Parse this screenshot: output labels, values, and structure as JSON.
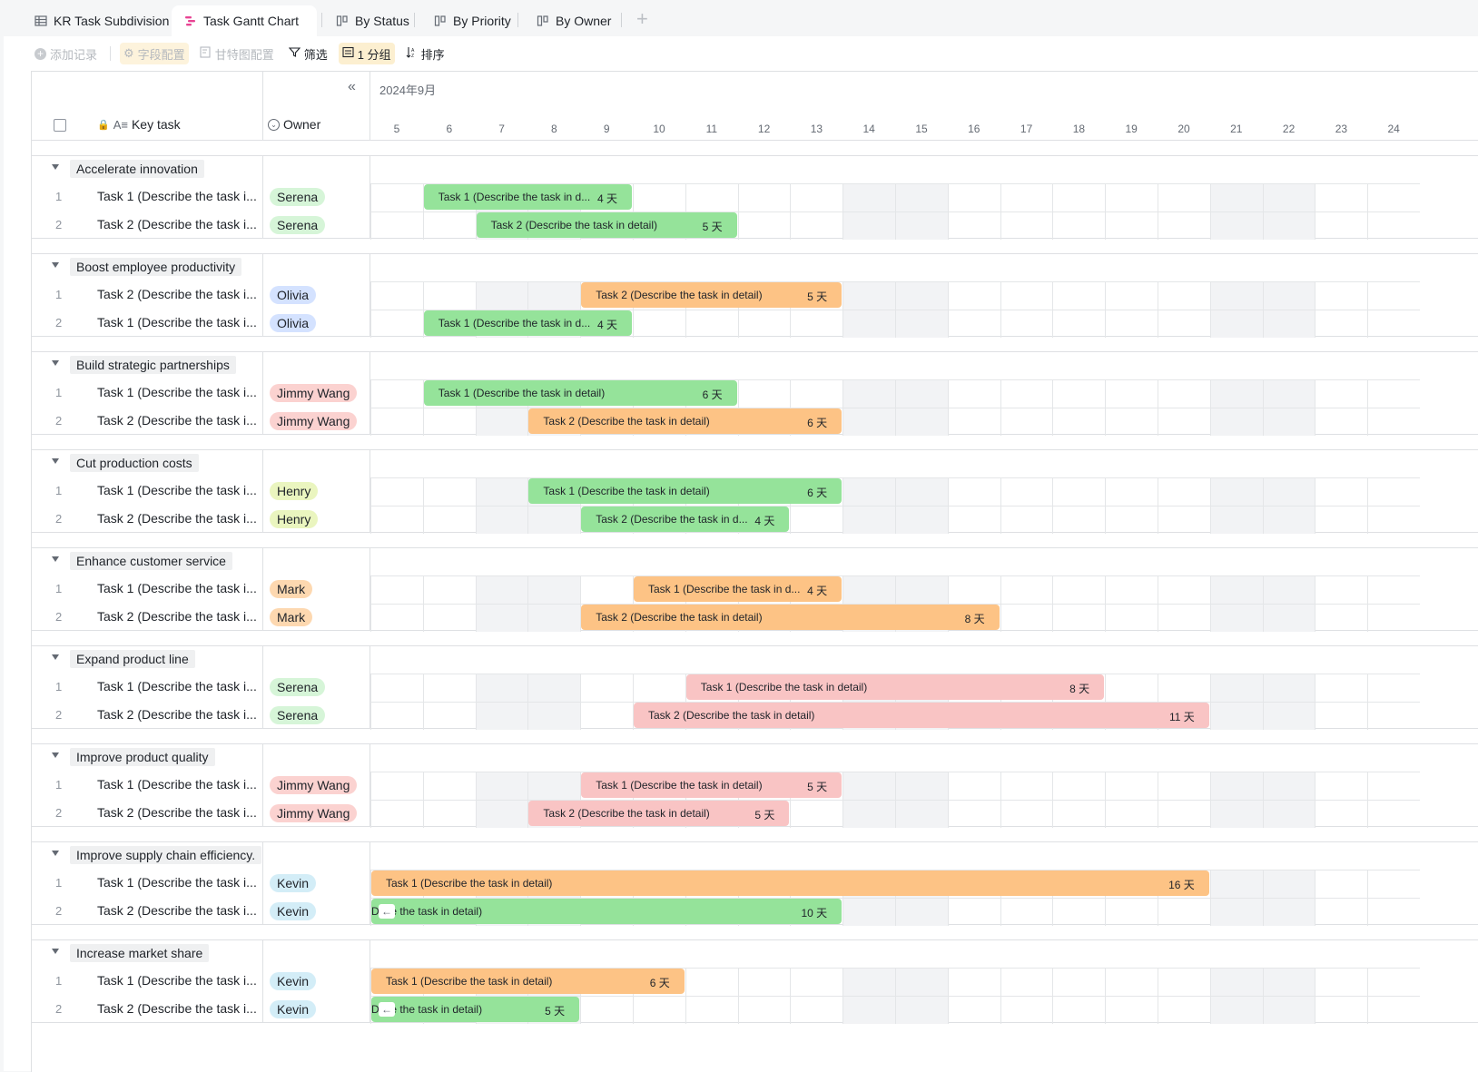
{
  "tabs": [
    {
      "label": "KR Task Subdivision",
      "icon": "table-icon",
      "active": false
    },
    {
      "label": "Task Gantt Chart",
      "icon": "gantt-icon",
      "active": true
    },
    {
      "label": "By Status",
      "icon": "kanban-icon",
      "active": false
    },
    {
      "label": "By Priority",
      "icon": "kanban-icon",
      "active": false
    },
    {
      "label": "By Owner",
      "icon": "kanban-icon",
      "active": false
    }
  ],
  "toolbar": {
    "add_record": "添加记录",
    "field_config": "字段配置",
    "gantt_config": "甘特图配置",
    "filter": "筛选",
    "group": "1 分组",
    "sort": "排序"
  },
  "header": {
    "key_task": "Key task",
    "owner": "Owner",
    "month": "2024年9月",
    "days": [
      "5",
      "6",
      "7",
      "8",
      "9",
      "10",
      "11",
      "12",
      "13",
      "14",
      "15",
      "16",
      "17",
      "18",
      "19",
      "20",
      "21",
      "22",
      "23",
      "24"
    ],
    "weekend_day_indexes": [
      2,
      3,
      9,
      10,
      16,
      17
    ]
  },
  "colors": {
    "green": "#95e39a",
    "orange": "#fdc385",
    "pink": "#f9c4c4",
    "weekend": "#f2f3f5"
  },
  "groups": [
    {
      "name": "Accelerate innovation",
      "rows": [
        {
          "num": "1",
          "task": "Task 1 (Describe the task i...",
          "owner": "Serena",
          "owner_color": "#d6f5d8",
          "bar": {
            "label": "Task 1 (Describe the task in d...",
            "dur": "4 天",
            "start": 6,
            "end": 9,
            "color": "green"
          }
        },
        {
          "num": "2",
          "task": "Task 2 (Describe the task i...",
          "owner": "Serena",
          "owner_color": "#d6f5d8",
          "bar": {
            "label": "Task 2 (Describe the task in detail)",
            "dur": "5 天",
            "start": 7,
            "end": 11,
            "color": "green"
          }
        }
      ]
    },
    {
      "name": "Boost employee productivity",
      "rows": [
        {
          "num": "1",
          "task": "Task 2 (Describe the task i...",
          "owner": "Olivia",
          "owner_color": "#d4e2ff",
          "bar": {
            "label": "Task 2 (Describe the task in detail)",
            "dur": "5 天",
            "start": 9,
            "end": 13,
            "color": "orange"
          }
        },
        {
          "num": "2",
          "task": "Task 1 (Describe the task i...",
          "owner": "Olivia",
          "owner_color": "#d4e2ff",
          "bar": {
            "label": "Task 1 (Describe the task in d...",
            "dur": "4 天",
            "start": 6,
            "end": 9,
            "color": "green"
          }
        }
      ]
    },
    {
      "name": "Build strategic partnerships",
      "rows": [
        {
          "num": "1",
          "task": "Task 1 (Describe the task i...",
          "owner": "Jimmy Wang",
          "owner_color": "#fbd2d0",
          "bar": {
            "label": "Task 1 (Describe the task in detail)",
            "dur": "6 天",
            "start": 6,
            "end": 11,
            "color": "green"
          }
        },
        {
          "num": "2",
          "task": "Task 2 (Describe the task i...",
          "owner": "Jimmy Wang",
          "owner_color": "#fbd2d0",
          "bar": {
            "label": "Task 2 (Describe the task in detail)",
            "dur": "6 天",
            "start": 8,
            "end": 13,
            "color": "orange"
          }
        }
      ]
    },
    {
      "name": "Cut production costs",
      "rows": [
        {
          "num": "1",
          "task": "Task 1 (Describe the task i...",
          "owner": "Henry",
          "owner_color": "#eaf5bf",
          "bar": {
            "label": "Task 1 (Describe the task in detail)",
            "dur": "6 天",
            "start": 8,
            "end": 13,
            "color": "green"
          }
        },
        {
          "num": "2",
          "task": "Task 2 (Describe the task i...",
          "owner": "Henry",
          "owner_color": "#eaf5bf",
          "bar": {
            "label": "Task 2 (Describe the task in d...",
            "dur": "4 天",
            "start": 9,
            "end": 12,
            "color": "green"
          }
        }
      ]
    },
    {
      "name": "Enhance customer service",
      "rows": [
        {
          "num": "1",
          "task": "Task 1 (Describe the task i...",
          "owner": "Mark",
          "owner_color": "#fdd8b0",
          "bar": {
            "label": "Task 1 (Describe the task in d...",
            "dur": "4 天",
            "start": 10,
            "end": 13,
            "color": "orange"
          }
        },
        {
          "num": "2",
          "task": "Task 2 (Describe the task i...",
          "owner": "Mark",
          "owner_color": "#fdd8b0",
          "bar": {
            "label": "Task 2 (Describe the task in detail)",
            "dur": "8 天",
            "start": 9,
            "end": 16,
            "color": "orange"
          }
        }
      ]
    },
    {
      "name": "Expand product line",
      "rows": [
        {
          "num": "1",
          "task": "Task 1 (Describe the task i...",
          "owner": "Serena",
          "owner_color": "#d6f5d8",
          "bar": {
            "label": "Task 1 (Describe the task in detail)",
            "dur": "8 天",
            "start": 11,
            "end": 18,
            "color": "pink"
          }
        },
        {
          "num": "2",
          "task": "Task 2 (Describe the task i...",
          "owner": "Serena",
          "owner_color": "#d6f5d8",
          "bar": {
            "label": "Task 2 (Describe the task in detail)",
            "dur": "11 天",
            "start": 10,
            "end": 20,
            "color": "pink"
          }
        }
      ]
    },
    {
      "name": "Improve product quality",
      "rows": [
        {
          "num": "1",
          "task": "Task 1 (Describe the task i...",
          "owner": "Jimmy Wang",
          "owner_color": "#fbd2d0",
          "bar": {
            "label": "Task 1 (Describe the task in detail)",
            "dur": "5 天",
            "start": 9,
            "end": 13,
            "color": "pink"
          }
        },
        {
          "num": "2",
          "task": "Task 2 (Describe the task i...",
          "owner": "Jimmy Wang",
          "owner_color": "#fbd2d0",
          "bar": {
            "label": "Task 2 (Describe the task in detail)",
            "dur": "5 天",
            "start": 8,
            "end": 12,
            "color": "pink"
          }
        }
      ]
    },
    {
      "name": "Improve supply chain efficiency.",
      "rows": [
        {
          "num": "1",
          "task": "Task 1 (Describe the task i...",
          "owner": "Kevin",
          "owner_color": "#d3edf7",
          "bar": {
            "label": "Task 1 (Describe the task in detail)",
            "dur": "16 天",
            "start": 5,
            "end": 20,
            "color": "orange"
          }
        },
        {
          "num": "2",
          "task": "Task 2 (Describe the task i...",
          "owner": "Kevin",
          "owner_color": "#d3edf7",
          "bar": {
            "label": "D  ibe the task in detail)",
            "dur": "10 天",
            "start": 5,
            "end": 13,
            "color": "green",
            "clipped": true
          }
        }
      ]
    },
    {
      "name": "Increase market share",
      "rows": [
        {
          "num": "1",
          "task": "Task 1 (Describe the task i...",
          "owner": "Kevin",
          "owner_color": "#d3edf7",
          "bar": {
            "label": "Task 1 (Describe the task in detail)",
            "dur": "6 天",
            "start": 5,
            "end": 10,
            "color": "orange"
          }
        },
        {
          "num": "2",
          "task": "Task 2 (Describe the task i...",
          "owner": "Kevin",
          "owner_color": "#d3edf7",
          "bar": {
            "label": "D  ibe the task in detail)",
            "dur": "5 天",
            "start": 5,
            "end": 8,
            "color": "green",
            "clipped": true
          }
        }
      ]
    }
  ]
}
